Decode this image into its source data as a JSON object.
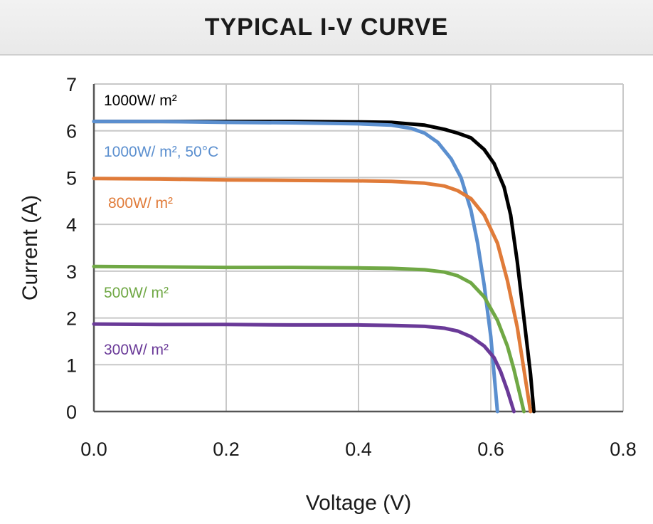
{
  "header": {
    "title": "TYPICAL I-V CURVE"
  },
  "chart_data": {
    "type": "line",
    "title": "TYPICAL I-V CURVE",
    "xlabel": "Voltage (V)",
    "ylabel": "Current (A)",
    "xlim": [
      0,
      0.8
    ],
    "ylim": [
      0,
      7
    ],
    "xticks": [
      "0.0",
      "0.2",
      "0.4",
      "0.6",
      "0.8"
    ],
    "yticks": [
      "0",
      "1",
      "2",
      "3",
      "4",
      "5",
      "6",
      "7"
    ],
    "grid": true,
    "legend": "inline labels inside plot, left side",
    "series": [
      {
        "name": "1000W/ m²",
        "color": "#000000",
        "points": [
          [
            0,
            6.2
          ],
          [
            0.1,
            6.2
          ],
          [
            0.2,
            6.2
          ],
          [
            0.3,
            6.2
          ],
          [
            0.4,
            6.19
          ],
          [
            0.45,
            6.18
          ],
          [
            0.5,
            6.12
          ],
          [
            0.53,
            6.03
          ],
          [
            0.55,
            5.95
          ],
          [
            0.57,
            5.85
          ],
          [
            0.59,
            5.6
          ],
          [
            0.605,
            5.3
          ],
          [
            0.62,
            4.8
          ],
          [
            0.63,
            4.2
          ],
          [
            0.64,
            3.2
          ],
          [
            0.65,
            2.0
          ],
          [
            0.66,
            0.8
          ],
          [
            0.665,
            0.0
          ]
        ]
      },
      {
        "name": "1000W/ m², 50°C",
        "color": "#5b8fcf",
        "points": [
          [
            0,
            6.2
          ],
          [
            0.1,
            6.2
          ],
          [
            0.2,
            6.18
          ],
          [
            0.3,
            6.17
          ],
          [
            0.4,
            6.15
          ],
          [
            0.45,
            6.12
          ],
          [
            0.48,
            6.05
          ],
          [
            0.5,
            5.95
          ],
          [
            0.52,
            5.75
          ],
          [
            0.54,
            5.4
          ],
          [
            0.555,
            5.0
          ],
          [
            0.57,
            4.3
          ],
          [
            0.58,
            3.6
          ],
          [
            0.59,
            2.7
          ],
          [
            0.6,
            1.6
          ],
          [
            0.605,
            0.8
          ],
          [
            0.61,
            0.0
          ]
        ]
      },
      {
        "name": "800W/ m²",
        "color": "#e07b39",
        "points": [
          [
            0,
            4.98
          ],
          [
            0.1,
            4.97
          ],
          [
            0.2,
            4.95
          ],
          [
            0.3,
            4.94
          ],
          [
            0.4,
            4.93
          ],
          [
            0.45,
            4.92
          ],
          [
            0.5,
            4.88
          ],
          [
            0.53,
            4.82
          ],
          [
            0.55,
            4.72
          ],
          [
            0.57,
            4.55
          ],
          [
            0.59,
            4.2
          ],
          [
            0.61,
            3.6
          ],
          [
            0.625,
            2.8
          ],
          [
            0.64,
            1.8
          ],
          [
            0.65,
            0.9
          ],
          [
            0.66,
            0.0
          ]
        ]
      },
      {
        "name": "500W/ m²",
        "color": "#70a845",
        "points": [
          [
            0,
            3.1
          ],
          [
            0.1,
            3.09
          ],
          [
            0.2,
            3.08
          ],
          [
            0.3,
            3.08
          ],
          [
            0.4,
            3.07
          ],
          [
            0.45,
            3.06
          ],
          [
            0.5,
            3.03
          ],
          [
            0.53,
            2.98
          ],
          [
            0.55,
            2.9
          ],
          [
            0.57,
            2.75
          ],
          [
            0.59,
            2.45
          ],
          [
            0.61,
            1.95
          ],
          [
            0.625,
            1.4
          ],
          [
            0.635,
            0.9
          ],
          [
            0.645,
            0.3
          ],
          [
            0.65,
            0.0
          ]
        ]
      },
      {
        "name": "300W/ m²",
        "color": "#6a3a98",
        "points": [
          [
            0,
            1.87
          ],
          [
            0.1,
            1.86
          ],
          [
            0.2,
            1.86
          ],
          [
            0.3,
            1.85
          ],
          [
            0.4,
            1.85
          ],
          [
            0.45,
            1.84
          ],
          [
            0.5,
            1.82
          ],
          [
            0.53,
            1.78
          ],
          [
            0.55,
            1.72
          ],
          [
            0.57,
            1.6
          ],
          [
            0.59,
            1.4
          ],
          [
            0.605,
            1.15
          ],
          [
            0.615,
            0.85
          ],
          [
            0.625,
            0.45
          ],
          [
            0.635,
            0.0
          ]
        ]
      }
    ]
  }
}
